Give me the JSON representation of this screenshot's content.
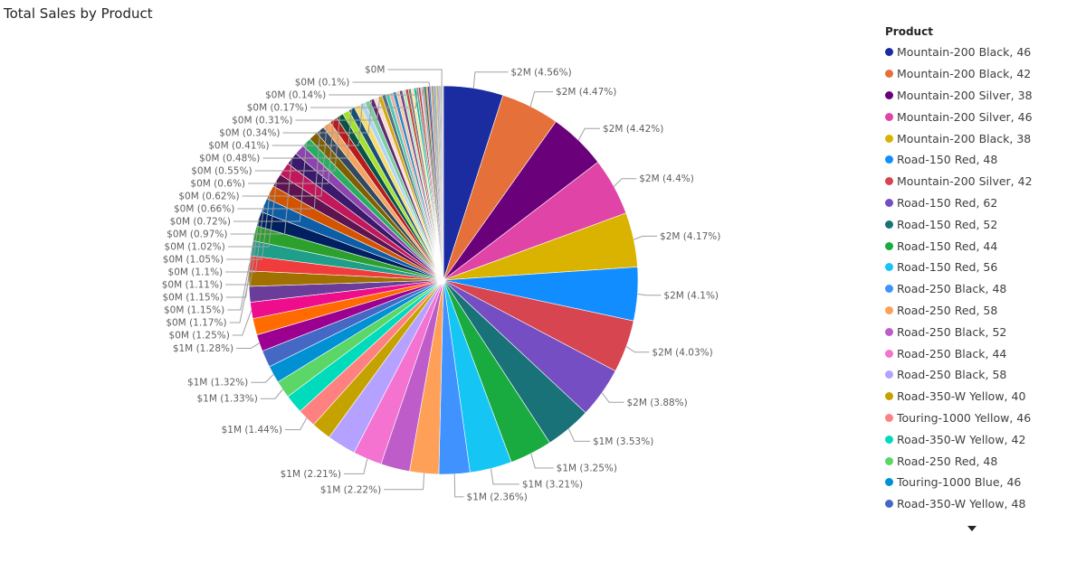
{
  "header": {
    "title": "Total Sales by Product"
  },
  "legend": {
    "title": "Product",
    "items": [
      {
        "name": "Mountain-200 Black, 46",
        "color": "#1A2CA0"
      },
      {
        "name": "Mountain-200 Black, 42",
        "color": "#E5703A"
      },
      {
        "name": "Mountain-200 Silver, 38",
        "color": "#6B007B"
      },
      {
        "name": "Mountain-200 Silver, 46",
        "color": "#E044A7"
      },
      {
        "name": "Mountain-200 Black, 38",
        "color": "#D9B300"
      },
      {
        "name": "Road-150 Red, 48",
        "color": "#118DFF"
      },
      {
        "name": "Mountain-200 Silver, 42",
        "color": "#D64550"
      },
      {
        "name": "Road-150 Red, 62",
        "color": "#744EC2"
      },
      {
        "name": "Road-150 Red, 52",
        "color": "#197278"
      },
      {
        "name": "Road-150 Red, 44",
        "color": "#1AAB40"
      },
      {
        "name": "Road-150 Red, 56",
        "color": "#15C6F4"
      },
      {
        "name": "Road-250 Black, 48",
        "color": "#4092FF"
      },
      {
        "name": "Road-250 Red, 58",
        "color": "#FFA058"
      },
      {
        "name": "Road-250 Black, 52",
        "color": "#BE5DC9"
      },
      {
        "name": "Road-250 Black, 44",
        "color": "#F472D0"
      },
      {
        "name": "Road-250 Black, 58",
        "color": "#B5A1FF"
      },
      {
        "name": "Road-350-W Yellow, 40",
        "color": "#C4A200"
      },
      {
        "name": "Touring-1000 Yellow, 46",
        "color": "#FF8080"
      },
      {
        "name": "Road-350-W Yellow, 42",
        "color": "#00DBBC"
      },
      {
        "name": "Road-250 Red, 48",
        "color": "#5BD667"
      },
      {
        "name": "Touring-1000 Blue, 46",
        "color": "#0091D5"
      },
      {
        "name": "Road-350-W Yellow, 48",
        "color": "#4668C5"
      }
    ]
  },
  "chart_data": {
    "type": "pie",
    "title": "Total Sales by Product",
    "legend_title": "Product",
    "legend_position": "right",
    "slices": [
      {
        "label": "$2M (4.56%)",
        "percent": 4.56,
        "color": "#1A2CA0"
      },
      {
        "label": "$2M (4.47%)",
        "percent": 4.47,
        "color": "#E5703A"
      },
      {
        "label": "$2M (4.42%)",
        "percent": 4.42,
        "color": "#6B007B"
      },
      {
        "label": "$2M (4.4%)",
        "percent": 4.4,
        "color": "#E044A7"
      },
      {
        "label": "$2M (4.17%)",
        "percent": 4.17,
        "color": "#D9B300"
      },
      {
        "label": "$2M (4.1%)",
        "percent": 4.1,
        "color": "#118DFF"
      },
      {
        "label": "$2M (4.03%)",
        "percent": 4.03,
        "color": "#D64550"
      },
      {
        "label": "$2M (3.88%)",
        "percent": 3.88,
        "color": "#744EC2"
      },
      {
        "label": "$1M (3.53%)",
        "percent": 3.53,
        "color": "#197278"
      },
      {
        "label": "$1M (3.25%)",
        "percent": 3.25,
        "color": "#1AAB40"
      },
      {
        "label": "$1M (3.21%)",
        "percent": 3.21,
        "color": "#15C6F4"
      },
      {
        "label": "$1M (2.36%)",
        "percent": 2.36,
        "color": "#4092FF"
      },
      {
        "label": "$1M (2.22%)",
        "percent": 2.22,
        "color": "#FFA058"
      },
      {
        "label": "",
        "percent": 2.22,
        "color": "#BE5DC9"
      },
      {
        "label": "$1M (2.21%)",
        "percent": 2.21,
        "color": "#F472D0"
      },
      {
        "label": "",
        "percent": 2.21,
        "color": "#B5A1FF"
      },
      {
        "label": "",
        "percent": 1.5,
        "color": "#C4A200"
      },
      {
        "label": "$1M (1.44%)",
        "percent": 1.44,
        "color": "#FF8080"
      },
      {
        "label": "",
        "percent": 1.44,
        "color": "#00DBBC"
      },
      {
        "label": "$1M (1.33%)",
        "percent": 1.33,
        "color": "#5BD667"
      },
      {
        "label": "$1M (1.32%)",
        "percent": 1.32,
        "color": "#0091D5"
      },
      {
        "label": "",
        "percent": 1.3,
        "color": "#4668C5"
      },
      {
        "label": "$1M (1.28%)",
        "percent": 1.28,
        "color": "#9C0090"
      },
      {
        "label": "",
        "percent": 1.27,
        "color": "#FF6B00"
      },
      {
        "label": "$0M (1.25%)",
        "percent": 1.25,
        "color": "#EE0D8A"
      },
      {
        "label": "",
        "percent": 1.2,
        "color": "#6A3D9A"
      },
      {
        "label": "$0M (1.17%)",
        "percent": 1.17,
        "color": "#A07000"
      },
      {
        "label": "$0M (1.15%)",
        "percent": 1.15,
        "color": "#F03C3C"
      },
      {
        "label": "",
        "percent": 1.15,
        "color": "#1F9E89"
      },
      {
        "label": "$0M (1.15%)",
        "percent": 1.15,
        "color": "#2CA02C"
      },
      {
        "label": "$0M (1.11%)",
        "percent": 1.11,
        "color": "#002060"
      },
      {
        "label": "$0M (1.1%)",
        "percent": 1.1,
        "color": "#0E5DA7"
      },
      {
        "label": "$0M (1.05%)",
        "percent": 1.05,
        "color": "#D35400"
      },
      {
        "label": "$0M (1.02%)",
        "percent": 1.02,
        "color": "#5D1451"
      },
      {
        "label": "",
        "percent": 1.0,
        "color": "#C2185B"
      },
      {
        "label": "$0M (0.97%)",
        "percent": 0.97,
        "color": "#3A1A6B"
      },
      {
        "label": "",
        "percent": 0.8,
        "color": "#8E44AD"
      },
      {
        "label": "$0M (0.72%)",
        "percent": 0.72,
        "color": "#27AE60"
      },
      {
        "label": "",
        "percent": 0.7,
        "color": "#7F6000"
      },
      {
        "label": "$0M (0.66%)",
        "percent": 0.66,
        "color": "#34495E"
      },
      {
        "label": "$0M (0.62%)",
        "percent": 0.62,
        "color": "#F4A460"
      },
      {
        "label": "$0M (0.6%)",
        "percent": 0.6,
        "color": "#B71C1C"
      },
      {
        "label": "$0M (0.55%)",
        "percent": 0.55,
        "color": "#0B5345"
      },
      {
        "label": "",
        "percent": 0.52,
        "color": "#A4E22E"
      },
      {
        "label": "$0M (0.48%)",
        "percent": 0.48,
        "color": "#1B4F72"
      },
      {
        "label": "",
        "percent": 0.46,
        "color": "#F7DC6F"
      },
      {
        "label": "$0M (0.41%)",
        "percent": 0.41,
        "color": "#AED6F1"
      },
      {
        "label": "",
        "percent": 0.4,
        "color": "#7DCEA0"
      },
      {
        "label": "$0M (0.34%)",
        "percent": 0.34,
        "color": "#5B2C6F"
      },
      {
        "label": "",
        "percent": 0.33,
        "color": "#FADBD8"
      },
      {
        "label": "$0M (0.31%)",
        "percent": 0.31,
        "color": "#D4AC0D"
      },
      {
        "label": "",
        "percent": 0.3,
        "color": "#5D6D7E"
      },
      {
        "label": "",
        "percent": 0.28,
        "color": "#48C9B0"
      },
      {
        "label": "",
        "percent": 0.27,
        "color": "#E6B0AA"
      },
      {
        "label": "",
        "percent": 0.26,
        "color": "#2E86C1"
      },
      {
        "label": "",
        "percent": 0.25,
        "color": "#F5CBA7"
      },
      {
        "label": "",
        "percent": 0.24,
        "color": "#76448A"
      },
      {
        "label": "",
        "percent": 0.23,
        "color": "#ABEBC6"
      },
      {
        "label": "",
        "percent": 0.22,
        "color": "#CB4335"
      },
      {
        "label": "",
        "percent": 0.21,
        "color": "#7B7D7D"
      },
      {
        "label": "",
        "percent": 0.2,
        "color": "#F9E79F"
      },
      {
        "label": "",
        "percent": 0.19,
        "color": "#1ABC9C"
      },
      {
        "label": "$0M (0.17%)",
        "percent": 0.17,
        "color": "#85929E"
      },
      {
        "label": "",
        "percent": 0.16,
        "color": "#C0392B"
      },
      {
        "label": "",
        "percent": 0.15,
        "color": "#A9CCE3"
      },
      {
        "label": "$0M (0.14%)",
        "percent": 0.14,
        "color": "#D98880"
      },
      {
        "label": "",
        "percent": 0.13,
        "color": "#117A65"
      },
      {
        "label": "",
        "percent": 0.12,
        "color": "#F0B27A"
      },
      {
        "label": "",
        "percent": 0.11,
        "color": "#6C3483"
      },
      {
        "label": "$0M (0.1%)",
        "percent": 0.1,
        "color": "#2874A6"
      },
      {
        "label": "",
        "percent": 0.09,
        "color": "#D5DBDB"
      },
      {
        "label": "",
        "percent": 0.09,
        "color": "#E74C3C"
      },
      {
        "label": "",
        "percent": 0.08,
        "color": "#58D68D"
      },
      {
        "label": "",
        "percent": 0.08,
        "color": "#5499C7"
      },
      {
        "label": "",
        "percent": 0.07,
        "color": "#AF7AC5"
      },
      {
        "label": "",
        "percent": 0.07,
        "color": "#F4D03F"
      },
      {
        "label": "",
        "percent": 0.06,
        "color": "#45B39D"
      },
      {
        "label": "",
        "percent": 0.06,
        "color": "#EC7063"
      },
      {
        "label": "",
        "percent": 0.05,
        "color": "#5DADE2"
      },
      {
        "label": "",
        "percent": 0.05,
        "color": "#A569BD"
      },
      {
        "label": "",
        "percent": 0.04,
        "color": "#52BE80"
      },
      {
        "label": "",
        "percent": 0.04,
        "color": "#E59866"
      },
      {
        "label": "",
        "percent": 0.04,
        "color": "#2E4053"
      },
      {
        "label": "",
        "percent": 0.03,
        "color": "#F1948A"
      },
      {
        "label": "$0M",
        "percent": 0.03,
        "color": "#48C9B0"
      },
      {
        "label": "",
        "percent": 0.03,
        "color": "#9B59B6"
      },
      {
        "label": "",
        "percent": 0.02,
        "color": "#F8C471"
      },
      {
        "label": "",
        "percent": 0.02,
        "color": "#85C1E9"
      },
      {
        "label": "",
        "percent": 0.02,
        "color": "#1A5276"
      },
      {
        "label": "",
        "percent": 0.02,
        "color": "#D2B4DE"
      }
    ]
  }
}
